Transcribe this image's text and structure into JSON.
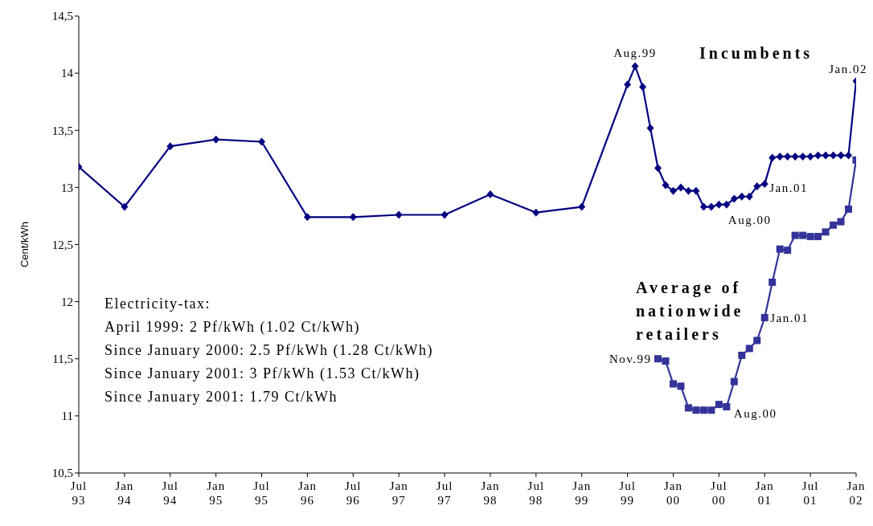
{
  "chart_data": {
    "type": "line",
    "ylabel": "Cent/kWh",
    "xlim": [
      "1993-07",
      "2002-01"
    ],
    "ylim": [
      10.5,
      14.5
    ],
    "yticks": [
      {
        "value": 10.5,
        "label": "10,5"
      },
      11,
      {
        "value": 11.5,
        "label": "11,5"
      },
      12,
      {
        "value": 12.5,
        "label": "12,5"
      },
      13,
      {
        "value": 13.5,
        "label": "13,5"
      },
      14,
      {
        "value": 14.5,
        "label": "14,5"
      }
    ],
    "xticks": [
      {
        "value": "1993-07",
        "label": "Jul 93"
      },
      {
        "value": "1994-01",
        "label": "Jan 94"
      },
      {
        "value": "1994-07",
        "label": "Jul 94"
      },
      {
        "value": "1995-01",
        "label": "Jan 95"
      },
      {
        "value": "1995-07",
        "label": "Jul 95"
      },
      {
        "value": "1996-01",
        "label": "Jan 96"
      },
      {
        "value": "1996-07",
        "label": "Jul 96"
      },
      {
        "value": "1997-01",
        "label": "Jan 97"
      },
      {
        "value": "1997-07",
        "label": "Jul 97"
      },
      {
        "value": "1998-01",
        "label": "Jan 98"
      },
      {
        "value": "1998-07",
        "label": "Jul 98"
      },
      {
        "value": "1999-01",
        "label": "Jan 99"
      },
      {
        "value": "1999-07",
        "label": "Jul 99"
      },
      {
        "value": "2000-01",
        "label": "Jan 00"
      },
      {
        "value": "2000-07",
        "label": "Jul 00"
      },
      {
        "value": "2001-01",
        "label": "Jan 01"
      },
      {
        "value": "2001-07",
        "label": "Jul 01"
      },
      {
        "value": "2002-01",
        "label": "Jan 02"
      }
    ],
    "grid": false,
    "legend": false,
    "line_style": "solid",
    "series": [
      {
        "name": "Incumbents",
        "color": "#000080",
        "marker": "diamond",
        "x": [
          "1993-07",
          "1994-01",
          "1994-07",
          "1995-01",
          "1995-07",
          "1996-01",
          "1996-07",
          "1997-01",
          "1997-07",
          "1998-01",
          "1998-07",
          "1999-01",
          "1999-07",
          "1999-08",
          "1999-09",
          "1999-10",
          "1999-11",
          "1999-12",
          "2000-01",
          "2000-02",
          "2000-03",
          "2000-04",
          "2000-05",
          "2000-06",
          "2000-07",
          "2000-08",
          "2000-09",
          "2000-10",
          "2000-11",
          "2000-12",
          "2001-01",
          "2001-02",
          "2001-03",
          "2001-04",
          "2001-05",
          "2001-06",
          "2001-07",
          "2001-08",
          "2001-09",
          "2001-10",
          "2001-11",
          "2001-12",
          "2002-01"
        ],
        "values": [
          13.18,
          12.83,
          13.36,
          13.42,
          13.4,
          12.74,
          12.74,
          12.76,
          12.76,
          12.94,
          12.78,
          12.83,
          13.9,
          14.06,
          13.88,
          13.52,
          13.17,
          13.02,
          12.97,
          13.0,
          12.97,
          12.97,
          12.83,
          12.83,
          12.85,
          12.85,
          12.9,
          12.92,
          12.92,
          13.01,
          13.03,
          13.26,
          13.27,
          13.27,
          13.27,
          13.27,
          13.27,
          13.28,
          13.28,
          13.28,
          13.28,
          13.28,
          13.93
        ]
      },
      {
        "name": "Average of nationwide retailers",
        "color": "#333399",
        "marker": "square",
        "x": [
          "1999-11",
          "1999-12",
          "2000-01",
          "2000-02",
          "2000-03",
          "2000-04",
          "2000-05",
          "2000-06",
          "2000-07",
          "2000-08",
          "2000-09",
          "2000-10",
          "2000-11",
          "2000-12",
          "2001-01",
          "2001-02",
          "2001-03",
          "2001-04",
          "2001-05",
          "2001-06",
          "2001-07",
          "2001-08",
          "2001-09",
          "2001-10",
          "2001-11",
          "2001-12",
          "2002-01"
        ],
        "values": [
          11.5,
          11.48,
          11.28,
          11.26,
          11.07,
          11.05,
          11.05,
          11.05,
          11.1,
          11.08,
          11.3,
          11.53,
          11.59,
          11.66,
          11.86,
          12.17,
          12.46,
          12.45,
          12.58,
          12.58,
          12.57,
          12.57,
          12.61,
          12.67,
          12.7,
          12.81,
          13.24
        ]
      }
    ],
    "annotations": [
      {
        "text": "Aug.99",
        "x": "1999-08",
        "y": 14.06
      },
      {
        "text": "Jan.02",
        "x": "2002-01",
        "y": 13.93
      },
      {
        "text": "Jan.01",
        "x": "2001-01",
        "y": 13.03
      },
      {
        "text": "Aug.00",
        "x": "2000-08",
        "y": 12.85
      },
      {
        "text": "Nov.99",
        "x": "1999-11",
        "y": 11.5
      },
      {
        "text": "Jan.01",
        "x": "2001-01",
        "y": 11.86
      },
      {
        "text": "Aug.00",
        "x": "2000-08",
        "y": 11.08
      },
      "Electricity-tax:",
      "April 1999: 2 Pf/kWh (1.02 Ct/kWh)",
      "Since January 2000: 2.5 Pf/kWh (1.28 Ct/kWh)",
      "Since January 2001: 3 Pf/kWh (1.53 Ct/kWh)",
      "Since January 2001: 1.79 Ct/kWh"
    ]
  }
}
